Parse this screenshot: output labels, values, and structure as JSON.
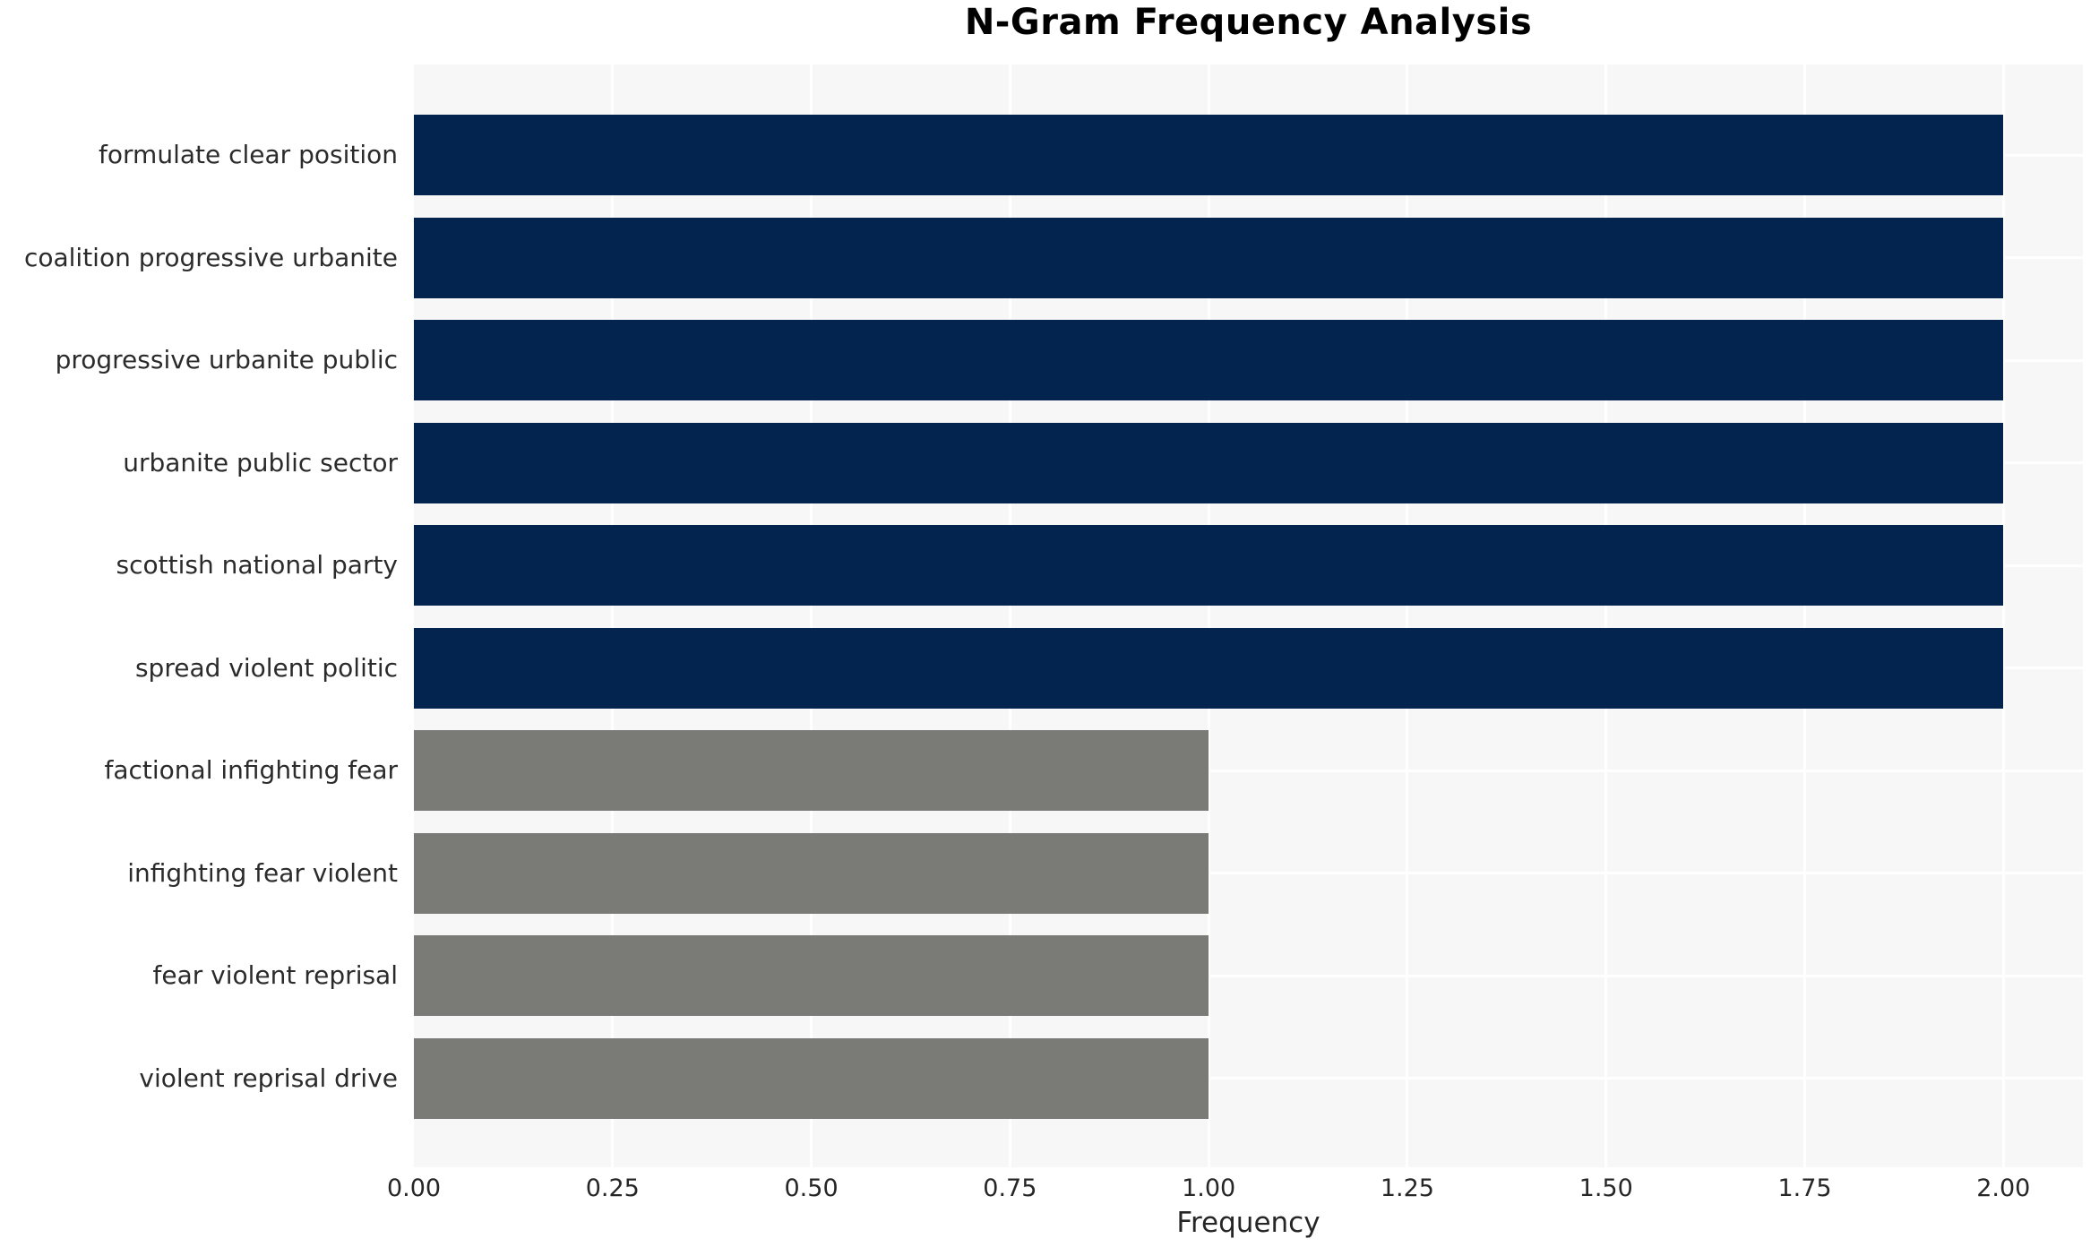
{
  "chart_data": {
    "type": "bar",
    "orientation": "horizontal",
    "title": "N-Gram Frequency Analysis",
    "xlabel": "Frequency",
    "ylabel": "",
    "categories": [
      "formulate clear position",
      "coalition progressive urbanite",
      "progressive urbanite public",
      "urbanite public sector",
      "scottish national party",
      "spread violent politic",
      "factional infighting fear",
      "infighting fear violent",
      "fear violent reprisal",
      "violent reprisal drive"
    ],
    "values": [
      2,
      2,
      2,
      2,
      2,
      2,
      1,
      1,
      1,
      1
    ],
    "bar_colors": [
      "#02244e",
      "#02244e",
      "#02244e",
      "#02244e",
      "#02244e",
      "#02244e",
      "#7a7a77",
      "#7a7a77",
      "#7a7a77",
      "#7a7a77"
    ],
    "xlim": [
      0,
      2.1
    ],
    "xticks": [
      0,
      0.25,
      0.5,
      0.75,
      1.0,
      1.25,
      1.5,
      1.75,
      2.0
    ],
    "xtick_labels": [
      "0.00",
      "0.25",
      "0.50",
      "0.75",
      "1.00",
      "1.25",
      "1.50",
      "1.75",
      "2.00"
    ],
    "grid": true,
    "legend": false,
    "styles": {
      "plot_background": "#f7f7f7",
      "grid_color": "#ffffff",
      "bar_primary": "#02244e",
      "bar_muted": "#7a7a77",
      "tick_text_color": "#262626",
      "title_color": "#000000"
    }
  }
}
